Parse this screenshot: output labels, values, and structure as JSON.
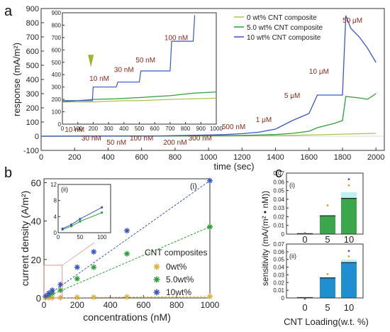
{
  "chart_data": [
    {
      "panel": "a",
      "type": "line",
      "xlabel": "time (sec)",
      "ylabel": "response (mA/m²)",
      "xlim": [
        0,
        2050
      ],
      "ylim": [
        -100,
        900
      ],
      "xticks": [
        0,
        200,
        400,
        600,
        800,
        1000,
        1200,
        1400,
        1600,
        1800,
        2000
      ],
      "yticks": [
        -100,
        0,
        100,
        200,
        300,
        400,
        500,
        600,
        700,
        800,
        900
      ],
      "legend_position": "top-right",
      "series": [
        {
          "name": "0 wt% CNT composite",
          "color": "#a8c64a",
          "x": [
            0,
            400,
            800,
            1100,
            1300,
            1500,
            1650,
            1820,
            2000
          ],
          "y": [
            0,
            0,
            1,
            2,
            3,
            6,
            10,
            15,
            20
          ]
        },
        {
          "name": "5.0 wt% CNT composite",
          "color": "#2e9e3a",
          "x": [
            0,
            900,
            1100,
            1250,
            1400,
            1500,
            1600,
            1650,
            1750,
            1800,
            1820,
            1900,
            1950,
            2000
          ],
          "y": [
            0,
            2,
            4,
            7,
            12,
            20,
            35,
            60,
            90,
            110,
            280,
            270,
            260,
            300
          ]
        },
        {
          "name": "10 wt% CNT composite",
          "color": "#3b56c4",
          "x": [
            0,
            700,
            900,
            1100,
            1200,
            1300,
            1400,
            1500,
            1600,
            1650,
            1800,
            1820,
            1850,
            1900,
            1950,
            2000
          ],
          "y": [
            0,
            2,
            6,
            12,
            18,
            28,
            50,
            110,
            160,
            290,
            290,
            850,
            760,
            700,
            620,
            520
          ]
        }
      ],
      "annotations_main": [
        {
          "label": "10 nM",
          "x": 200
        },
        {
          "label": "30 nM",
          "x": 300
        },
        {
          "label": "50 nM",
          "x": 450
        },
        {
          "label": "100 nM",
          "x": 600
        },
        {
          "label": "200 nM",
          "x": 800
        },
        {
          "label": "300 nM",
          "x": 950
        },
        {
          "label": "500 nM",
          "x": 1150
        },
        {
          "label": "1 μM",
          "x": 1330
        },
        {
          "label": "5 μM",
          "x": 1500
        },
        {
          "label": "10 μM",
          "x": 1660
        },
        {
          "label": "50 μM",
          "x": 1860
        }
      ],
      "inset": {
        "xlim": [
          0,
          1000
        ],
        "ylim": [
          0,
          900
        ],
        "xticks": [
          0,
          100,
          200,
          300,
          400,
          500,
          600,
          700,
          800,
          900,
          1000
        ],
        "yticks": [
          0,
          100,
          200,
          300,
          400,
          500,
          600,
          700,
          800,
          900
        ],
        "marker_x": 185,
        "labels": [
          {
            "label": "10 nM",
            "x": 240,
            "y": 350
          },
          {
            "label": "30 nM",
            "x": 400,
            "y": 420
          },
          {
            "label": "50 nM",
            "x": 540,
            "y": 500
          },
          {
            "label": "100 nM",
            "x": 740,
            "y": 680
          }
        ],
        "series": [
          {
            "name": "0 wt%",
            "color": "#a8c64a",
            "x": [
              0,
              200,
              300,
              400,
              500,
              600,
              700,
              850,
              1000
            ],
            "y": [
              180,
              180,
              185,
              190,
              190,
              195,
              200,
              205,
              210
            ]
          },
          {
            "name": "5.0 wt%",
            "color": "#2e9e3a",
            "x": [
              0,
              200,
              350,
              500,
              700,
              850,
              1000
            ],
            "y": [
              180,
              200,
              205,
              215,
              230,
              250,
              260
            ]
          },
          {
            "name": "10 wt%",
            "color": "#3b56c4",
            "x": [
              0,
              195,
              200,
              350,
              360,
              500,
              510,
              700,
              710,
              850,
              860
            ],
            "y": [
              190,
              190,
              300,
              300,
              340,
              340,
              430,
              430,
              670,
              670,
              880
            ]
          }
        ]
      }
    },
    {
      "panel": "b",
      "type": "scatter",
      "xlabel": "concentrations (nM)",
      "ylabel": "current density (A/m²)",
      "xlim": [
        0,
        1000
      ],
      "ylim": [
        0,
        62
      ],
      "xticks": [
        0,
        200,
        400,
        600,
        800,
        1000
      ],
      "yticks": [
        0,
        20,
        40,
        60
      ],
      "tag": "(i)",
      "legend_title": "CNT composites",
      "legend_position": "right",
      "series": [
        {
          "name": "0wt%",
          "color": "#d9b341",
          "marker": "star",
          "x": [
            10,
            30,
            50,
            100,
            200,
            300,
            500,
            1000
          ],
          "y": [
            0.1,
            0.1,
            0.15,
            0.2,
            0.3,
            0.4,
            0.5,
            0.8
          ]
        },
        {
          "name": "5.0wt%",
          "color": "#2e9e3a",
          "marker": "star",
          "x": [
            10,
            30,
            50,
            100,
            200,
            300,
            500,
            1000
          ],
          "y": [
            0.8,
            1.5,
            2.5,
            4.0,
            10,
            16,
            23,
            37
          ]
        },
        {
          "name": "10wt%",
          "color": "#3b56c4",
          "marker": "star",
          "x": [
            10,
            30,
            50,
            100,
            200,
            300,
            500,
            1000
          ],
          "y": [
            1.0,
            2.5,
            4.0,
            7.0,
            16,
            24,
            35,
            61
          ]
        }
      ],
      "inset": {
        "tag": "(ii)",
        "xlim": [
          0,
          120
        ],
        "ylim": [
          0,
          12
        ],
        "xticks": [
          0,
          50,
          100
        ],
        "yticks": [
          0,
          4,
          8,
          12
        ],
        "series": [
          {
            "color": "#2e9e3a",
            "x": [
              10,
              30,
              50,
              100
            ],
            "y": [
              0.8,
              1.6,
              2.8,
              5.0
            ]
          },
          {
            "color": "#3b56c4",
            "x": [
              10,
              30,
              50,
              100
            ],
            "y": [
              1.0,
              2.0,
              3.4,
              6.3
            ]
          }
        ]
      }
    },
    {
      "panel": "c",
      "type": "bar",
      "ylabel": "sensitivity (mA/(m² • nM))",
      "xlabel": "CNT Loading(w.t. %)",
      "categories": [
        "0",
        "5",
        "10"
      ],
      "ylim": [
        0,
        0.07
      ],
      "yticks": [
        "0",
        "0.01",
        "0.02",
        "0.03",
        "0.04",
        "0.05",
        "0.06",
        "0.07"
      ],
      "subplots": [
        {
          "tag": "(i)",
          "color": "#3aa84a",
          "values": [
            0.0005,
            0.021,
            0.041
          ],
          "band_hi": [
            0.0008,
            0.022,
            0.048
          ]
        },
        {
          "tag": "(ii)",
          "color": "#1f8fd0",
          "values": [
            0.0005,
            0.026,
            0.046
          ],
          "band_hi": [
            0.0008,
            0.027,
            0.05
          ]
        }
      ]
    }
  ],
  "panel_labels": {
    "a": "a",
    "b": "b",
    "c": "c"
  },
  "legend_a": [
    "0 wt% CNT composite",
    "5.0 wt% CNT composite",
    "10 wt% CNT composite"
  ]
}
